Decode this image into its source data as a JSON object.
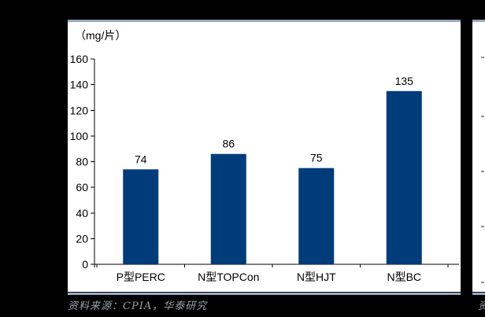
{
  "chart_data": {
    "type": "bar",
    "title": "",
    "unit_label": "（mg/片）",
    "categories": [
      "P型PERC",
      "N型TOPCon",
      "N型HJT",
      "N型BC"
    ],
    "values": [
      74,
      86,
      75,
      135
    ],
    "yticks": [
      0,
      20,
      40,
      60,
      80,
      100,
      120,
      140,
      160
    ],
    "ylim": [
      0,
      160
    ],
    "xlabel": "",
    "ylabel": "（mg/片）",
    "grid": false,
    "legend": "none",
    "value_labels": true,
    "bar_color": "#003B7A",
    "axis_color": "#000000",
    "text_color": "#000000"
  },
  "source_note": {
    "text": "资料来源：CPIA，华泰研究"
  },
  "adjacent_panel": {
    "source_note_fragment": "资料来源："
  },
  "colors": {
    "page_background": "#000000",
    "panel_background": "#FFFFFF",
    "panel_border": "#99A8C3",
    "source_text": "#9AA0A8"
  }
}
